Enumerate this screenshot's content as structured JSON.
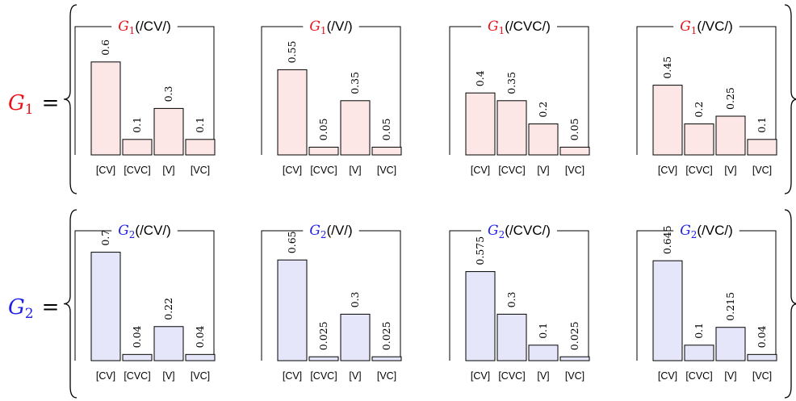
{
  "categories": [
    "[CV]",
    "[CVC]",
    "[V]",
    "[VC]"
  ],
  "groups": [
    {
      "symbol": "G",
      "subscript": "1",
      "equals": "=",
      "color": "#e8141c",
      "bar_fill": "#fde6e6",
      "panels": [
        {
          "symbol": "G",
          "subscript": "1",
          "arg": "(/CV/)",
          "values": [
            0.6,
            0.1,
            0.3,
            0.1
          ],
          "labels": [
            "0.6",
            "0.1",
            "0.3",
            "0.1"
          ]
        },
        {
          "symbol": "G",
          "subscript": "1",
          "arg": "(/V/)",
          "values": [
            0.55,
            0.05,
            0.35,
            0.05
          ],
          "labels": [
            "0.55",
            "0.05",
            "0.35",
            "0.05"
          ]
        },
        {
          "symbol": "G",
          "subscript": "1",
          "arg": "(/CVC/)",
          "values": [
            0.4,
            0.35,
            0.2,
            0.05
          ],
          "labels": [
            "0.4",
            "0.35",
            "0.2",
            "0.05"
          ]
        },
        {
          "symbol": "G",
          "subscript": "1",
          "arg": "(/VC/)",
          "values": [
            0.45,
            0.2,
            0.25,
            0.1
          ],
          "labels": [
            "0.45",
            "0.2",
            "0.25",
            "0.1"
          ]
        }
      ]
    },
    {
      "symbol": "G",
      "subscript": "2",
      "equals": "=",
      "color": "#1f1fe8",
      "bar_fill": "#e6e6fb",
      "panels": [
        {
          "symbol": "G",
          "subscript": "2",
          "arg": "(/CV/)",
          "values": [
            0.7,
            0.04,
            0.22,
            0.04
          ],
          "labels": [
            "0.7",
            "0.04",
            "0.22",
            "0.04"
          ]
        },
        {
          "symbol": "G",
          "subscript": "2",
          "arg": "(/V/)",
          "values": [
            0.65,
            0.025,
            0.3,
            0.025
          ],
          "labels": [
            "0.65",
            "0.025",
            "0.3",
            "0.025"
          ]
        },
        {
          "symbol": "G",
          "subscript": "2",
          "arg": "(/CVC/)",
          "values": [
            0.575,
            0.3,
            0.1,
            0.025
          ],
          "labels": [
            "0.575",
            "0.3",
            "0.1",
            "0.025"
          ]
        },
        {
          "symbol": "G",
          "subscript": "2",
          "arg": "(/VC/)",
          "values": [
            0.645,
            0.1,
            0.215,
            0.04
          ],
          "labels": [
            "0.645",
            "0.1",
            "0.215",
            "0.04"
          ]
        }
      ]
    }
  ],
  "chart_data": [
    {
      "type": "bar",
      "title": "G1(/CV/)",
      "categories": [
        "[CV]",
        "[CVC]",
        "[V]",
        "[VC]"
      ],
      "values": [
        0.6,
        0.1,
        0.3,
        0.1
      ],
      "ylim": [
        0,
        0.8
      ],
      "grid": false
    },
    {
      "type": "bar",
      "title": "G1(/V/)",
      "categories": [
        "[CV]",
        "[CVC]",
        "[V]",
        "[VC]"
      ],
      "values": [
        0.55,
        0.05,
        0.35,
        0.05
      ],
      "ylim": [
        0,
        0.8
      ],
      "grid": false
    },
    {
      "type": "bar",
      "title": "G1(/CVC/)",
      "categories": [
        "[CV]",
        "[CVC]",
        "[V]",
        "[VC]"
      ],
      "values": [
        0.4,
        0.35,
        0.2,
        0.05
      ],
      "ylim": [
        0,
        0.8
      ],
      "grid": false
    },
    {
      "type": "bar",
      "title": "G1(/VC/)",
      "categories": [
        "[CV]",
        "[CVC]",
        "[V]",
        "[VC]"
      ],
      "values": [
        0.45,
        0.2,
        0.25,
        0.1
      ],
      "ylim": [
        0,
        0.8
      ],
      "grid": false
    },
    {
      "type": "bar",
      "title": "G2(/CV/)",
      "categories": [
        "[CV]",
        "[CVC]",
        "[V]",
        "[VC]"
      ],
      "values": [
        0.7,
        0.04,
        0.22,
        0.04
      ],
      "ylim": [
        0,
        0.8
      ],
      "grid": false
    },
    {
      "type": "bar",
      "title": "G2(/V/)",
      "categories": [
        "[CV]",
        "[CVC]",
        "[V]",
        "[VC]"
      ],
      "values": [
        0.65,
        0.025,
        0.3,
        0.025
      ],
      "ylim": [
        0,
        0.8
      ],
      "grid": false
    },
    {
      "type": "bar",
      "title": "G2(/CVC/)",
      "categories": [
        "[CV]",
        "[CVC]",
        "[V]",
        "[VC]"
      ],
      "values": [
        0.575,
        0.3,
        0.1,
        0.025
      ],
      "ylim": [
        0,
        0.8
      ],
      "grid": false
    },
    {
      "type": "bar",
      "title": "G2(/VC/)",
      "categories": [
        "[CV]",
        "[CVC]",
        "[V]",
        "[VC]"
      ],
      "values": [
        0.645,
        0.1,
        0.215,
        0.04
      ],
      "ylim": [
        0,
        0.8
      ],
      "grid": false
    }
  ]
}
